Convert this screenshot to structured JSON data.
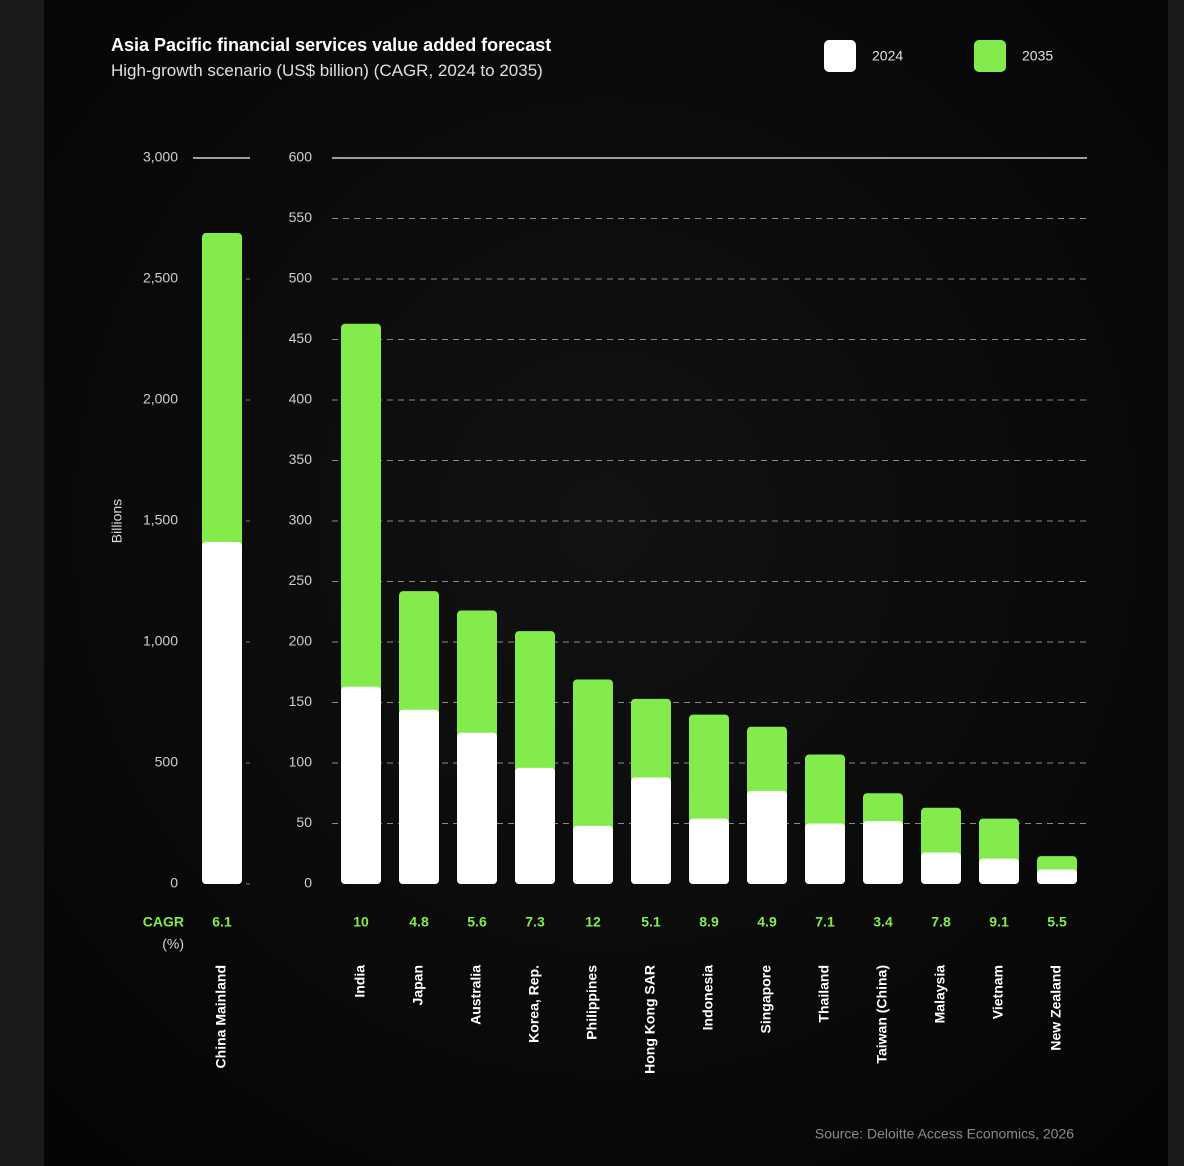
{
  "title": "Asia Pacific financial services value added forecast",
  "subtitle": "High-growth scenario (US$ billion)  (CAGR, 2024 to 2035)",
  "y_label": "Billions",
  "cagr_label": "CAGR",
  "cagr_unit": "(%)",
  "source": "Source: Deloitte Access Economics, 2026",
  "chart_data": [
    {
      "type": "bar",
      "categories": [
        "China Mainland"
      ],
      "series": [
        {
          "name": "2024",
          "color": "#ffffff",
          "values": [
            1413
          ]
        },
        {
          "name": "2035",
          "color": "#84eb4d",
          "values": [
            2690
          ]
        }
      ],
      "cagr": [
        6.1
      ],
      "ylim": [
        0,
        3000
      ],
      "yticks": [
        0,
        500,
        {
          "value": 1000,
          "label": "1,000"
        },
        {
          "value": 1500,
          "label": "1,500"
        },
        {
          "value": 2000,
          "label": "2,000"
        },
        {
          "value": 2500,
          "label": "2,500"
        },
        {
          "value": 3000,
          "label": "3,000"
        }
      ],
      "grid": false
    },
    {
      "type": "bar",
      "categories": [
        "India",
        "Japan",
        "Australia",
        "Korea, Rep.",
        "Philippines",
        "Hong Kong SAR",
        "Indonesia",
        "Singapore",
        "Thailand",
        "Taiwan (China)",
        "Malaysia",
        "Vietnam",
        "New Zealand"
      ],
      "series": [
        {
          "name": "2024",
          "color": "#ffffff",
          "values": [
            163,
            144,
            125,
            96,
            48,
            88,
            54,
            77,
            50,
            52,
            26,
            21,
            12
          ]
        },
        {
          "name": "2035",
          "color": "#84eb4d",
          "values": [
            463,
            242,
            226,
            209,
            169,
            153,
            140,
            130,
            107,
            75,
            63,
            54,
            23
          ]
        }
      ],
      "cagr": [
        10,
        4.8,
        5.6,
        7.3,
        12,
        5.1,
        8.9,
        4.9,
        7.1,
        3.4,
        7.8,
        9.1,
        5.5
      ],
      "ylim": [
        0,
        600
      ],
      "yticks": [
        0,
        50,
        100,
        150,
        200,
        250,
        300,
        350,
        400,
        450,
        500,
        550,
        600
      ],
      "grid": true
    }
  ]
}
